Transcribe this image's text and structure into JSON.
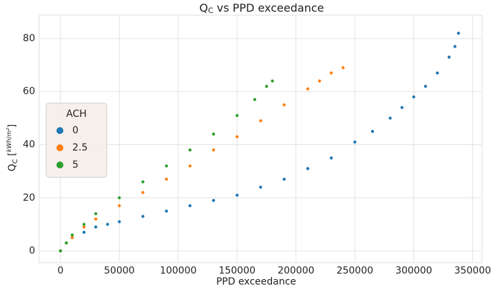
{
  "chart_data": {
    "type": "scatter",
    "title": {
      "main": "Q",
      "sub": "C",
      "rest": " vs PPD exceedance"
    },
    "xlabel": "PPD exceedance",
    "ylabel": {
      "main": "Q",
      "sub": "C",
      "num": "kWh",
      "den": "m²"
    },
    "legend_title": "ACH",
    "legend": "upper left",
    "grid": true,
    "xlim": [
      -18000,
      358000
    ],
    "ylim": [
      -4.4,
      88.8
    ],
    "xticks": [
      0,
      50000,
      100000,
      150000,
      200000,
      250000,
      300000,
      350000
    ],
    "yticks": [
      0,
      20,
      40,
      60,
      80
    ],
    "series": [
      {
        "name": "0",
        "color": "#1f77b4",
        "x": [
          0,
          5000,
          10000,
          20000,
          30000,
          40000,
          50000,
          70000,
          90000,
          110000,
          130000,
          150000,
          170000,
          190000,
          210000,
          230000,
          250000,
          265000,
          280000,
          290000,
          300000,
          310000,
          320000,
          330000,
          335000,
          338000
        ],
        "values": [
          0,
          3,
          5,
          7,
          9,
          10,
          11,
          13,
          15,
          17,
          19,
          21,
          24,
          27,
          31,
          35,
          41,
          45,
          50,
          54,
          58,
          62,
          67,
          73,
          77,
          82
        ]
      },
      {
        "name": "2.5",
        "color": "#ff7f0e",
        "x": [
          0,
          5000,
          10000,
          20000,
          30000,
          50000,
          70000,
          90000,
          110000,
          130000,
          150000,
          170000,
          190000,
          210000,
          220000,
          230000,
          240000
        ],
        "values": [
          0,
          3,
          5,
          9,
          12,
          17,
          22,
          27,
          32,
          38,
          43,
          49,
          55,
          61,
          64,
          67,
          69
        ]
      },
      {
        "name": "5",
        "color": "#2ca02c",
        "x": [
          0,
          5000,
          10000,
          20000,
          30000,
          50000,
          70000,
          90000,
          110000,
          130000,
          150000,
          165000,
          175000,
          180000
        ],
        "values": [
          0,
          3,
          6,
          10,
          14,
          20,
          26,
          32,
          38,
          44,
          51,
          57,
          62,
          64
        ]
      }
    ]
  }
}
